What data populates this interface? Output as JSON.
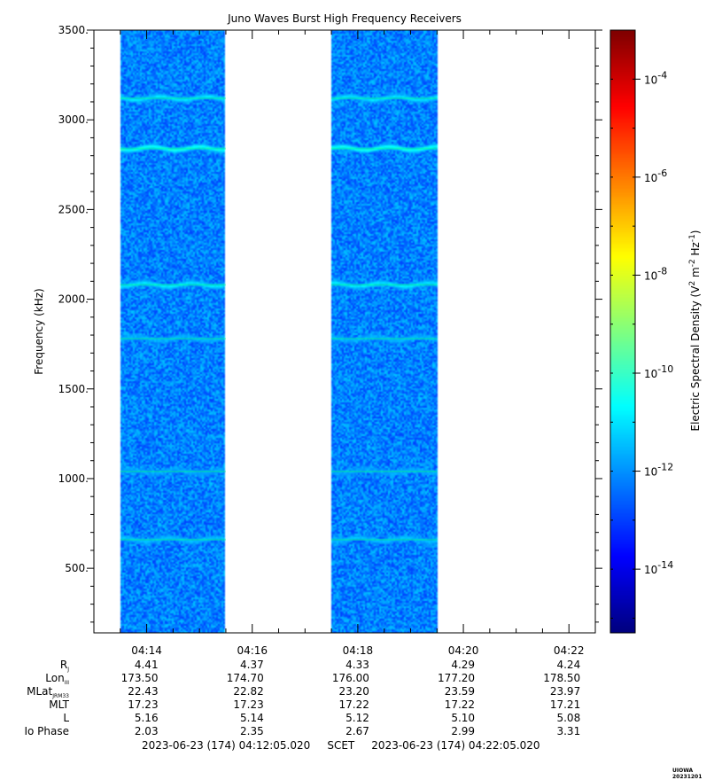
{
  "chart_data": {
    "type": "heatmap",
    "title": "Juno Waves Burst High Frequency Receivers",
    "ylabel": "Frequency (kHz)",
    "ylim": [
      140,
      3500
    ],
    "y_ticks": [
      500,
      1000,
      1500,
      2000,
      2500,
      3000,
      3500
    ],
    "y_tick_labels": [
      "500.",
      "1000.",
      "1500.",
      "2000.",
      "2500.",
      "3000.",
      "3500."
    ],
    "x_range_min": [
      253.0,
      262.5
    ],
    "x_ticks_min": [
      254,
      256,
      258,
      260,
      262
    ],
    "x_tick_labels": [
      "04:14",
      "04:16",
      "04:18",
      "04:20",
      "04:22"
    ],
    "data_intervals_min": [
      [
        253.5,
        255.5
      ],
      [
        257.5,
        259.5
      ]
    ],
    "colorbar": {
      "label_main": "Electric Spectral Density (V",
      "label_sup1": "2",
      "label_mid": " m",
      "label_sup2": "-2",
      "label_mid2": " Hz",
      "label_sup3": "-1",
      "label_end": ")",
      "log_min": -15.3,
      "log_max": -3.0,
      "tick_exponents": [
        -14,
        -12,
        -10,
        -8,
        -6,
        -4
      ],
      "tick_labels": [
        "10",
        "10",
        "10",
        "10",
        "10",
        "10"
      ],
      "tick_sups": [
        "-14",
        "-12",
        "-10",
        "-8",
        "-6",
        "-4"
      ]
    },
    "spectral_lines_khz": [
      3120,
      2840,
      2080,
      1780,
      1040,
      660
    ],
    "background_log_value": -12.2
  },
  "ephemeris": {
    "rows": [
      {
        "label": "R",
        "sub": "J",
        "values": [
          "4.41",
          "4.37",
          "4.33",
          "4.29",
          "4.24"
        ]
      },
      {
        "label": "Lon",
        "sub": "III",
        "values": [
          "173.50",
          "174.70",
          "176.00",
          "177.20",
          "178.50"
        ]
      },
      {
        "label": "MLat",
        "sub": "JRM33",
        "values": [
          "22.43",
          "22.82",
          "23.20",
          "23.59",
          "23.97"
        ]
      },
      {
        "label": "MLT",
        "sub": "",
        "values": [
          "17.23",
          "17.23",
          "17.22",
          "17.22",
          "17.21"
        ]
      },
      {
        "label": "L",
        "sub": "",
        "values": [
          "5.16",
          "5.14",
          "5.12",
          "5.10",
          "5.08"
        ]
      },
      {
        "label": "Io Phase",
        "sub": "",
        "values": [
          "2.03",
          "2.35",
          "2.67",
          "2.99",
          "3.31"
        ]
      }
    ]
  },
  "footer": {
    "time_range": "2023-06-23 (174) 04:12:05.020     SCET     2023-06-23 (174) 04:22:05.020",
    "stamp": "UIOWA 20231201"
  }
}
